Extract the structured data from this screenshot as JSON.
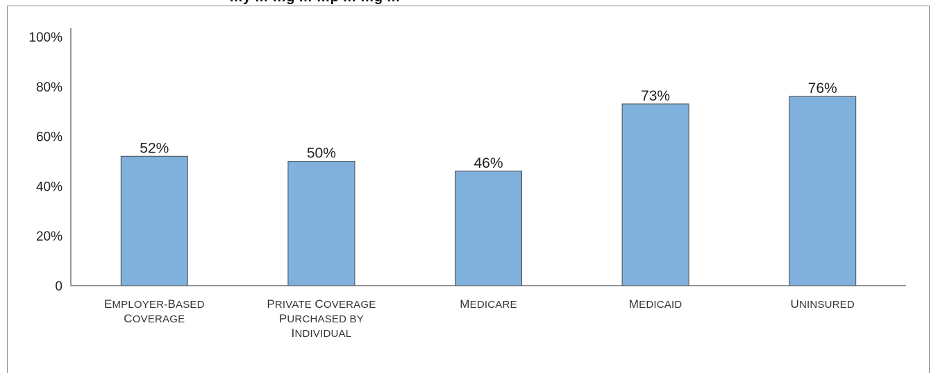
{
  "title": "…y … …g … …p … …g …",
  "chart_data": {
    "type": "bar",
    "categories": [
      [
        "Employer-Based",
        "Coverage"
      ],
      [
        "Private Coverage",
        "Purchased by",
        "Individual"
      ],
      [
        "Medicare"
      ],
      [
        "Medicaid"
      ],
      [
        "Uninsured"
      ]
    ],
    "values": [
      52,
      50,
      46,
      73,
      76
    ],
    "value_labels": [
      "52%",
      "50%",
      "46%",
      "73%",
      "76%"
    ],
    "ylim": [
      0,
      100
    ],
    "yticks": [
      0,
      20,
      40,
      60,
      80,
      100
    ],
    "ytick_labels": [
      "0",
      "20%",
      "40%",
      "60%",
      "80%",
      "100%"
    ],
    "grid": false,
    "colors": {
      "bar_fill": "#80b1dd",
      "bar_stroke": "#4a4a4a",
      "axis": "#555555"
    }
  }
}
